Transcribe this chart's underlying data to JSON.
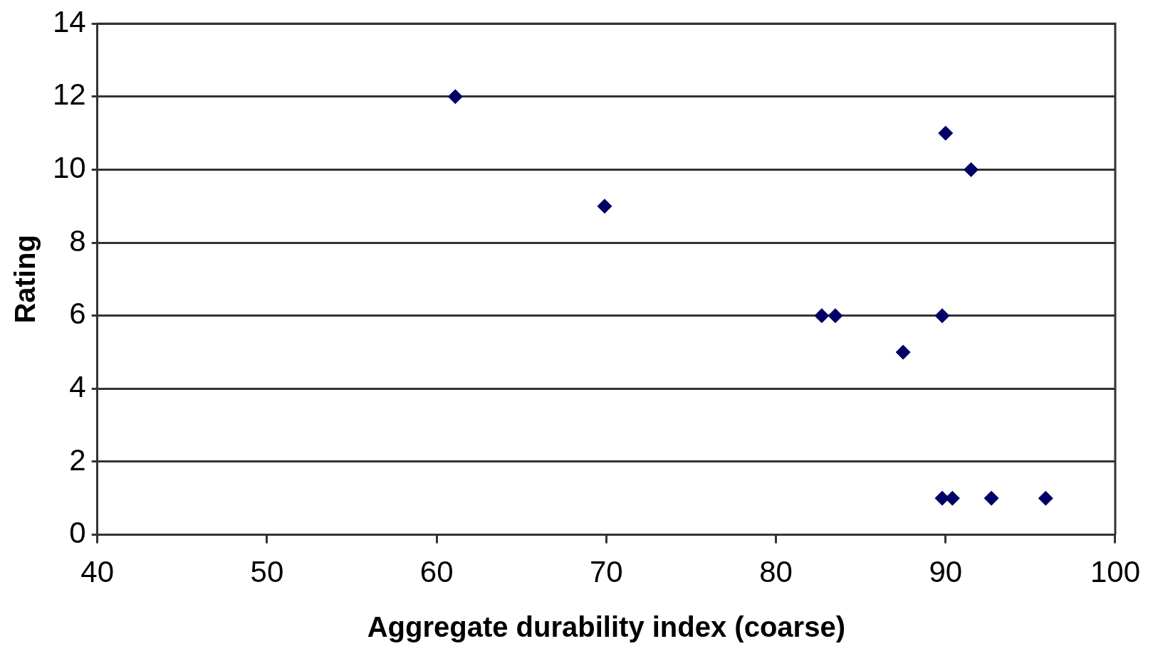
{
  "chart_data": {
    "type": "scatter",
    "xlabel": "Aggregate durability index (coarse)",
    "ylabel": "Rating",
    "x": [
      61.1,
      69.9,
      90.0,
      91.5,
      82.7,
      83.5,
      89.8,
      87.5,
      89.8,
      90.4,
      92.7,
      95.9
    ],
    "series": [
      {
        "color": "#000066",
        "values": [
          12,
          9,
          11,
          10,
          6,
          6,
          6,
          5,
          1,
          1,
          1,
          1
        ]
      }
    ],
    "xlim": [
      40,
      100
    ],
    "xticks": [
      40,
      50,
      60,
      70,
      80,
      90,
      100
    ],
    "ylim": [
      0,
      14
    ],
    "yticks": [
      0,
      2,
      4,
      6,
      8,
      10,
      12,
      14
    ],
    "grid": "y",
    "marker": "diamond",
    "legend": false
  }
}
